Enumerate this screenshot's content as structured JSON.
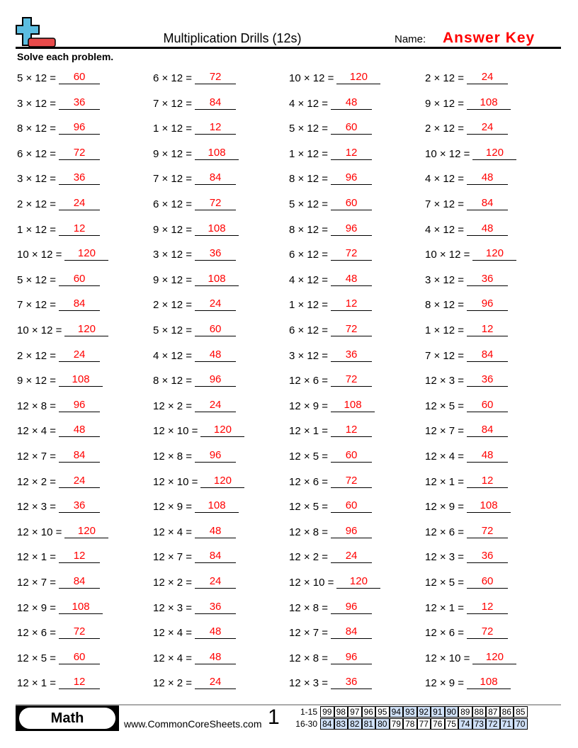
{
  "header": {
    "title": "Multiplication Drills (12s)",
    "name_label": "Name:",
    "name_value": "Answer Key",
    "instructions": "Solve each problem."
  },
  "colors": {
    "answer": "#ff0000",
    "logo_plus": "#5bbde0",
    "logo_minus": "#e94b4b",
    "score_highlight": "#cfe0f7"
  },
  "problems": [
    [
      "5 × 12 =",
      "60",
      "6 × 12 =",
      "72",
      "10 × 12 =",
      "120",
      "2 × 12 =",
      "24"
    ],
    [
      "3 × 12 =",
      "36",
      "7 × 12 =",
      "84",
      "4 × 12 =",
      "48",
      "9 × 12 =",
      "108"
    ],
    [
      "8 × 12 =",
      "96",
      "1 × 12 =",
      "12",
      "5 × 12 =",
      "60",
      "2 × 12 =",
      "24"
    ],
    [
      "6 × 12 =",
      "72",
      "9 × 12 =",
      "108",
      "1 × 12 =",
      "12",
      "10 × 12 =",
      "120"
    ],
    [
      "3 × 12 =",
      "36",
      "7 × 12 =",
      "84",
      "8 × 12 =",
      "96",
      "4 × 12 =",
      "48"
    ],
    [
      "2 × 12 =",
      "24",
      "6 × 12 =",
      "72",
      "5 × 12 =",
      "60",
      "7 × 12 =",
      "84"
    ],
    [
      "1 × 12 =",
      "12",
      "9 × 12 =",
      "108",
      "8 × 12 =",
      "96",
      "4 × 12 =",
      "48"
    ],
    [
      "10 × 12 =",
      "120",
      "3 × 12 =",
      "36",
      "6 × 12 =",
      "72",
      "10 × 12 =",
      "120"
    ],
    [
      "5 × 12 =",
      "60",
      "9 × 12 =",
      "108",
      "4 × 12 =",
      "48",
      "3 × 12 =",
      "36"
    ],
    [
      "7 × 12 =",
      "84",
      "2 × 12 =",
      "24",
      "1 × 12 =",
      "12",
      "8 × 12 =",
      "96"
    ],
    [
      "10 × 12 =",
      "120",
      "5 × 12 =",
      "60",
      "6 × 12 =",
      "72",
      "1 × 12 =",
      "12"
    ],
    [
      "2 × 12 =",
      "24",
      "4 × 12 =",
      "48",
      "3 × 12 =",
      "36",
      "7 × 12 =",
      "84"
    ],
    [
      "9 × 12 =",
      "108",
      "8 × 12 =",
      "96",
      "12 × 6 =",
      "72",
      "12 × 3 =",
      "36"
    ],
    [
      "12 × 8 =",
      "96",
      "12 × 2 =",
      "24",
      "12 × 9 =",
      "108",
      "12 × 5 =",
      "60"
    ],
    [
      "12 × 4 =",
      "48",
      "12 × 10 =",
      "120",
      "12 × 1 =",
      "12",
      "12 × 7 =",
      "84"
    ],
    [
      "12 × 7 =",
      "84",
      "12 × 8 =",
      "96",
      "12 × 5 =",
      "60",
      "12 × 4 =",
      "48"
    ],
    [
      "12 × 2 =",
      "24",
      "12 × 10 =",
      "120",
      "12 × 6 =",
      "72",
      "12 × 1 =",
      "12"
    ],
    [
      "12 × 3 =",
      "36",
      "12 × 9 =",
      "108",
      "12 × 5 =",
      "60",
      "12 × 9 =",
      "108"
    ],
    [
      "12 × 10 =",
      "120",
      "12 × 4 =",
      "48",
      "12 × 8 =",
      "96",
      "12 × 6 =",
      "72"
    ],
    [
      "12 × 1 =",
      "12",
      "12 × 7 =",
      "84",
      "12 × 2 =",
      "24",
      "12 × 3 =",
      "36"
    ],
    [
      "12 × 7 =",
      "84",
      "12 × 2 =",
      "24",
      "12 × 10 =",
      "120",
      "12 × 5 =",
      "60"
    ],
    [
      "12 × 9 =",
      "108",
      "12 × 3 =",
      "36",
      "12 × 8 =",
      "96",
      "12 × 1 =",
      "12"
    ],
    [
      "12 × 6 =",
      "72",
      "12 × 4 =",
      "48",
      "12 × 7 =",
      "84",
      "12 × 6 =",
      "72"
    ],
    [
      "12 × 5 =",
      "60",
      "12 × 4 =",
      "48",
      "12 × 8 =",
      "96",
      "12 × 10 =",
      "120"
    ],
    [
      "12 × 1 =",
      "12",
      "12 × 2 =",
      "24",
      "12 × 3 =",
      "36",
      "12 × 9 =",
      "108"
    ]
  ],
  "footer": {
    "subject": "Math",
    "site": "www.CommonCoreSheets.com",
    "page": "1",
    "score_rows": [
      {
        "label": "1-15",
        "cells": [
          "99",
          "98",
          "97",
          "96",
          "95",
          "94",
          "93",
          "92",
          "91",
          "90",
          "89",
          "88",
          "87",
          "86",
          "85"
        ],
        "highlight": [
          false,
          false,
          false,
          false,
          false,
          true,
          true,
          true,
          true,
          true,
          false,
          false,
          false,
          false,
          false
        ]
      },
      {
        "label": "16-30",
        "cells": [
          "84",
          "83",
          "82",
          "81",
          "80",
          "79",
          "78",
          "77",
          "76",
          "75",
          "74",
          "73",
          "72",
          "71",
          "70"
        ],
        "highlight": [
          true,
          true,
          true,
          true,
          true,
          false,
          false,
          false,
          false,
          false,
          true,
          true,
          true,
          true,
          true
        ]
      }
    ]
  }
}
